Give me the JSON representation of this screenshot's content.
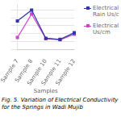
{
  "chart_data": {
    "type": "line",
    "title": "Fig. 5. Variation of Electrical Conductivity for the Springs in Wadi Mujib",
    "xlabel": "Samples",
    "categories": [
      "Sample 7",
      "Sample 8",
      "Sample 10",
      "Sample 11",
      "Sample 12"
    ],
    "series": [
      {
        "name": "Electrical\nRain Us/c",
        "color": "#3333aa",
        "marker": "square",
        "values": [
          0.72,
          1.0,
          0.28,
          0.25,
          0.42
        ]
      },
      {
        "name": "Electrical\nUs/cm",
        "color": "#cc44cc",
        "marker": "square",
        "values": [
          0.3,
          0.9,
          0.27,
          0.24,
          0.38
        ]
      }
    ],
    "ylim": [
      0,
      1.15
    ],
    "yticks": [
      0,
      0.2,
      0.4,
      0.6,
      0.8,
      1.0
    ],
    "grid": "y",
    "tick_labels": "x",
    "legend": "right"
  }
}
